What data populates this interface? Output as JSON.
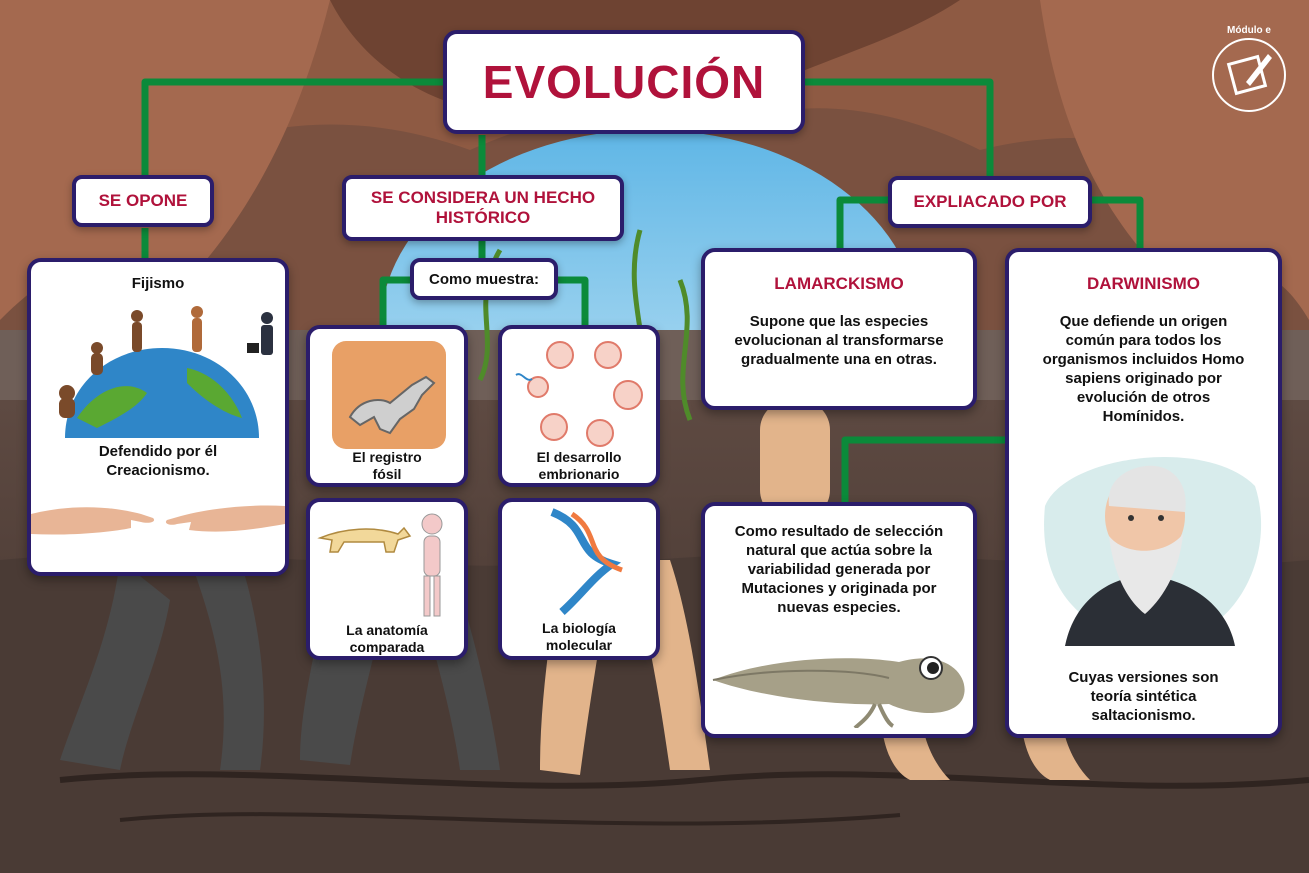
{
  "title": "EVOLUCIÓN",
  "badge": {
    "brand": "Módulo e"
  },
  "colors": {
    "accent": "#b0123b",
    "border": "#2b1d6b",
    "connector": "#0b8a3a"
  },
  "branches": {
    "se_opone": {
      "label": "SE OPONE"
    },
    "hecho_historico": {
      "label": "SE CONSIDERA UN HECHO HISTÓRICO",
      "sub_label": "Como muestra:"
    },
    "explicado_por": {
      "label": "EXPLIACADO POR"
    }
  },
  "fijismo": {
    "heading": "Fijismo",
    "text": "Defendido por él Creacionismo."
  },
  "evidence": {
    "fossil": "El registro fósil",
    "embryo": "El desarrollo embrionario",
    "anatomy": "La anatomía comparada",
    "molecular": "La biología molecular"
  },
  "lamarckismo": {
    "heading": "LAMARCKISMO",
    "text": "Supone que las especies evolucionan al transformarse gradualmente una en otras."
  },
  "seleccion": {
    "text": "Como resultado de selección natural que actúa sobre la variabilidad generada por Mutaciones y originada por nuevas especies."
  },
  "darwinismo": {
    "heading": "DARWINISMO",
    "text": "Que defiende un origen común para todos los organismos incluidos Homo sapiens originado por evolución de otros Homínidos.",
    "footer": "Cuyas versiones son teoría sintética saltacionismo."
  },
  "icons": [
    "evolution-globe-icon",
    "creation-hands-icon",
    "fossil-icon",
    "embryo-cycle-icon",
    "skeleton-icon",
    "dna-icon",
    "tadpole-icon",
    "darwin-portrait-icon"
  ]
}
